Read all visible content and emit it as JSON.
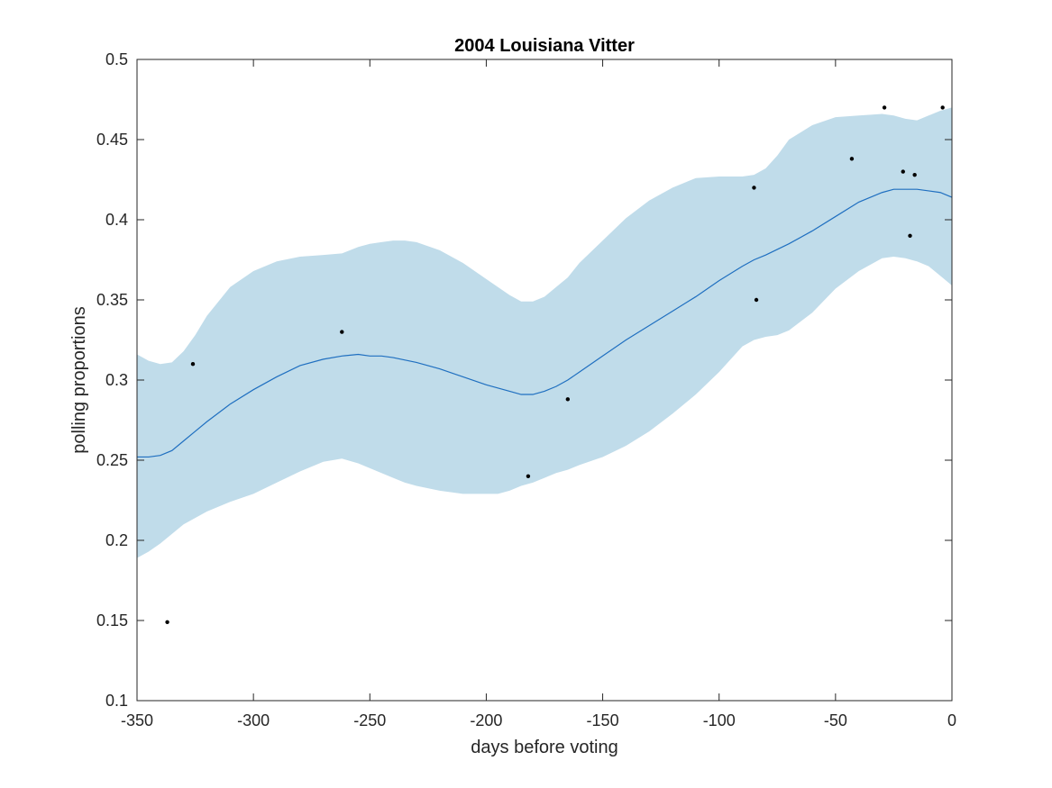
{
  "chart_data": {
    "type": "line",
    "title": "2004 Louisiana Vitter",
    "xlabel": "days before voting",
    "ylabel": "polling proportions",
    "xlim": [
      -350,
      0
    ],
    "ylim": [
      0.1,
      0.5
    ],
    "xticks": [
      -350,
      -300,
      -250,
      -200,
      -150,
      -100,
      -50,
      0
    ],
    "yticks": [
      0.1,
      0.15,
      0.2,
      0.25,
      0.3,
      0.35,
      0.4,
      0.45,
      0.5
    ],
    "grid": false,
    "legend": "none",
    "colors": {
      "band": "#c0dcea",
      "line": "#1f6fc0",
      "points": "#000000"
    },
    "band": {
      "x": [
        -350,
        -345,
        -340,
        -335,
        -330,
        -325,
        -320,
        -310,
        -300,
        -290,
        -280,
        -270,
        -262,
        -255,
        -250,
        -245,
        -240,
        -235,
        -230,
        -220,
        -210,
        -200,
        -195,
        -190,
        -185,
        -180,
        -175,
        -170,
        -165,
        -160,
        -150,
        -140,
        -130,
        -120,
        -110,
        -100,
        -90,
        -85,
        -80,
        -75,
        -70,
        -60,
        -50,
        -40,
        -30,
        -25,
        -20,
        -15,
        -10,
        -5,
        0
      ],
      "upper": [
        0.316,
        0.312,
        0.31,
        0.311,
        0.318,
        0.328,
        0.34,
        0.358,
        0.368,
        0.374,
        0.377,
        0.378,
        0.379,
        0.383,
        0.385,
        0.386,
        0.387,
        0.387,
        0.386,
        0.381,
        0.373,
        0.363,
        0.358,
        0.353,
        0.349,
        0.349,
        0.352,
        0.358,
        0.364,
        0.373,
        0.387,
        0.401,
        0.412,
        0.42,
        0.426,
        0.427,
        0.427,
        0.428,
        0.432,
        0.44,
        0.45,
        0.459,
        0.464,
        0.465,
        0.466,
        0.465,
        0.463,
        0.462,
        0.465,
        0.468,
        0.47
      ],
      "lower": [
        0.189,
        0.193,
        0.198,
        0.204,
        0.21,
        0.214,
        0.218,
        0.224,
        0.229,
        0.236,
        0.243,
        0.249,
        0.251,
        0.248,
        0.245,
        0.242,
        0.239,
        0.236,
        0.234,
        0.231,
        0.229,
        0.229,
        0.229,
        0.231,
        0.234,
        0.236,
        0.239,
        0.242,
        0.244,
        0.247,
        0.252,
        0.259,
        0.268,
        0.279,
        0.291,
        0.305,
        0.321,
        0.325,
        0.327,
        0.328,
        0.331,
        0.342,
        0.357,
        0.368,
        0.376,
        0.377,
        0.376,
        0.374,
        0.371,
        0.365,
        0.359
      ]
    },
    "series": [
      {
        "x": [
          -350,
          -345,
          -340,
          -335,
          -330,
          -325,
          -320,
          -310,
          -300,
          -290,
          -280,
          -270,
          -262,
          -255,
          -250,
          -245,
          -240,
          -230,
          -220,
          -210,
          -200,
          -190,
          -185,
          -180,
          -175,
          -170,
          -165,
          -160,
          -150,
          -140,
          -130,
          -120,
          -110,
          -100,
          -90,
          -85,
          -80,
          -70,
          -60,
          -50,
          -40,
          -30,
          -25,
          -20,
          -15,
          -10,
          -5,
          0
        ],
        "y": [
          0.252,
          0.252,
          0.253,
          0.256,
          0.262,
          0.268,
          0.274,
          0.285,
          0.294,
          0.302,
          0.309,
          0.313,
          0.315,
          0.316,
          0.315,
          0.315,
          0.314,
          0.311,
          0.307,
          0.302,
          0.297,
          0.293,
          0.291,
          0.291,
          0.293,
          0.296,
          0.3,
          0.305,
          0.315,
          0.325,
          0.334,
          0.343,
          0.352,
          0.362,
          0.371,
          0.375,
          0.378,
          0.385,
          0.393,
          0.402,
          0.411,
          0.417,
          0.419,
          0.419,
          0.419,
          0.418,
          0.417,
          0.414
        ]
      }
    ],
    "points": {
      "x": [
        -337,
        -326,
        -262,
        -182,
        -165,
        -85,
        -84,
        -43,
        -29,
        -21,
        -18,
        -16,
        -4
      ],
      "y": [
        0.149,
        0.31,
        0.33,
        0.24,
        0.288,
        0.42,
        0.35,
        0.438,
        0.47,
        0.43,
        0.39,
        0.428,
        0.47
      ]
    }
  }
}
